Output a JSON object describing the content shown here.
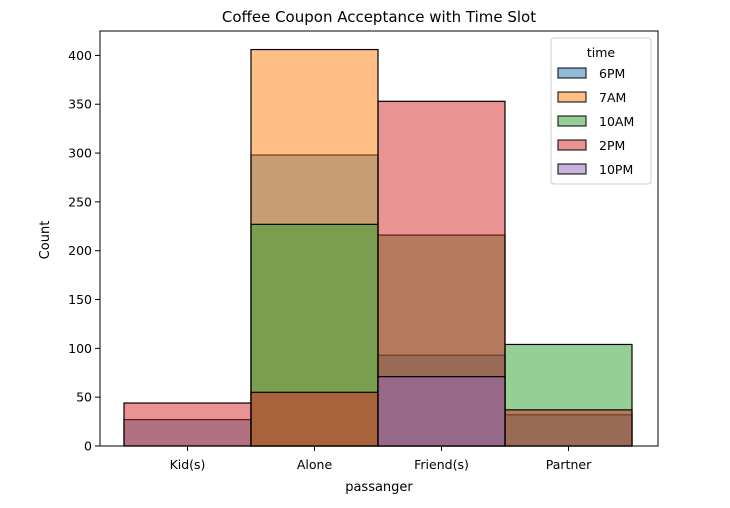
{
  "chart_data": {
    "type": "bar",
    "title": "Coffee Coupon Acceptance with Time Slot",
    "xlabel": "passanger",
    "ylabel": "Count",
    "categories": [
      "Kid(s)",
      "Alone",
      "Friend(s)",
      "Partner"
    ],
    "ylim": [
      0,
      425
    ],
    "yticks": [
      0,
      50,
      100,
      150,
      200,
      250,
      300,
      350,
      400
    ],
    "grid": false,
    "legend": {
      "title": "time",
      "position": "upper right"
    },
    "series": [
      {
        "name": "6PM",
        "color": "#1f77b4",
        "values": [
          27,
          298,
          93,
          32
        ]
      },
      {
        "name": "7AM",
        "color": "#ff7f0e",
        "values": [
          0,
          406,
          0,
          0
        ]
      },
      {
        "name": "10AM",
        "color": "#2ca02c",
        "values": [
          0,
          227,
          216,
          104
        ]
      },
      {
        "name": "2PM",
        "color": "#d62728",
        "values": [
          44,
          55,
          353,
          37
        ]
      },
      {
        "name": "10PM",
        "color": "#9467bd",
        "values": [
          0,
          0,
          71,
          0
        ]
      }
    ],
    "bar_alpha": 0.5,
    "edge_color": "#000000"
  }
}
